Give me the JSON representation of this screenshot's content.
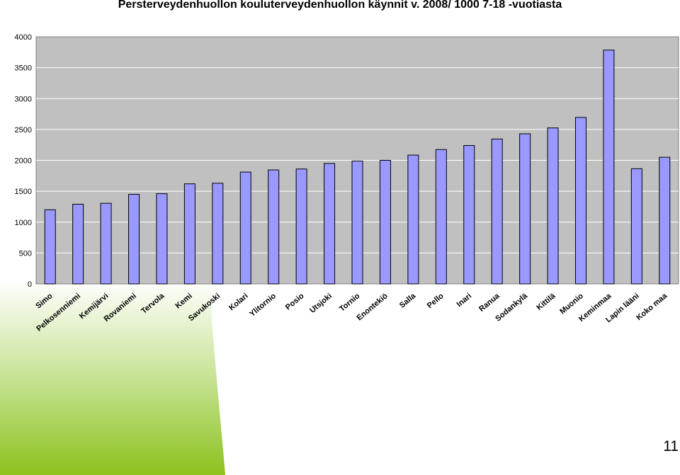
{
  "slide": {
    "page_number": "11"
  },
  "chart_data": {
    "type": "bar",
    "title": "Persterveydenhuollon kouluterveydenhuollon käynnit v. 2008/ 1000 7-18 -vuotiasta",
    "xlabel": "",
    "ylabel": "",
    "ylim": [
      0,
      4000
    ],
    "yticks": [
      "0",
      "500",
      "1000",
      "1500",
      "2000",
      "2500",
      "3000",
      "3500",
      "4000"
    ],
    "grid": true,
    "legend": "none",
    "colors": {
      "bar": "#9999ff",
      "plot_background": "#c0c0c0",
      "gridline": "#ffffff",
      "bar_outline": "#000000"
    },
    "categories": [
      "Simo",
      "Pelkosenniemi",
      "Kemijärvi",
      "Rovaniemi",
      "Tervola",
      "Kemi",
      "Savukoski",
      "Kolari",
      "Ylitornio",
      "Posio",
      "Utsjoki",
      "Tornio",
      "Enontekiö",
      "Salla",
      "Pello",
      "Inari",
      "Ranua",
      "Sodankylä",
      "Kittilä",
      "Muonio",
      "Keminmaa",
      "Lapin lääni",
      "Koko maa"
    ],
    "values": [
      1200,
      1290,
      1305,
      1450,
      1460,
      1620,
      1630,
      1810,
      1845,
      1860,
      1950,
      1990,
      2000,
      2085,
      2175,
      2240,
      2345,
      2430,
      2525,
      2695,
      3785,
      1865,
      2050
    ]
  }
}
